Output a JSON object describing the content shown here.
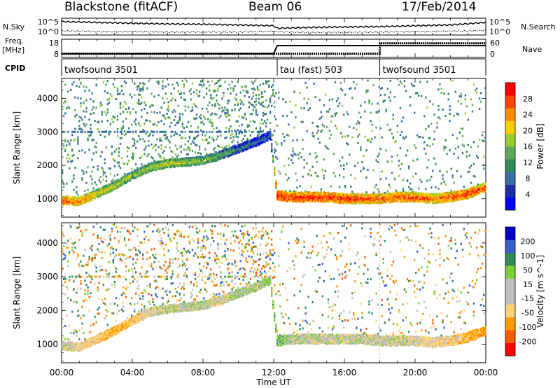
{
  "header": {
    "title": "Blackstone (fitACF)",
    "beam": "Beam 06",
    "date": "17/Feb/2014"
  },
  "side_labels": {
    "nsky": "N.Sky",
    "nsearch": "N.Search",
    "freq": "Freq.",
    "freq_unit": "[MHz]",
    "nave": "Nave",
    "cpid": "CPID"
  },
  "colors": {
    "power_scale": [
      "#0000ff",
      "#1e2ea8",
      "#3a6ea5",
      "#2e8b57",
      "#5faa5a",
      "#9acd32",
      "#ffcc00",
      "#ff8c00",
      "#ff4500",
      "#ff0000"
    ],
    "velocity_scale": [
      "#ff0000",
      "#ff5a00",
      "#ff9a00",
      "#ffd27a",
      "#c0c0c0",
      "#c0c0c0",
      "#7ccd3a",
      "#2e8b57",
      "#3a5fcd",
      "#0000cd"
    ],
    "trace": "#000000"
  },
  "chart_data": [
    {
      "type": "line",
      "title": "N.Sky / N.Search",
      "y_ticks": [
        "10^5",
        "10^0"
      ],
      "y_ticks_right": [
        "10^5",
        "10^0"
      ],
      "x_range_hours": [
        0,
        24
      ],
      "series": [
        {
          "name": "N.Sky",
          "style": "solid",
          "x": [
            0,
            2,
            4,
            6,
            8,
            10,
            12,
            12.2,
            14,
            16,
            18,
            20,
            22,
            24
          ],
          "y": [
            0.8,
            0.75,
            0.7,
            0.66,
            0.64,
            0.6,
            0.55,
            0.4,
            0.45,
            0.48,
            0.5,
            0.55,
            0.6,
            0.75
          ]
        },
        {
          "name": "N.Search",
          "style": "dotted",
          "x": [
            0,
            2,
            4,
            6,
            8,
            10,
            12,
            12.2,
            14,
            16,
            18,
            20,
            22,
            24
          ],
          "y": [
            0.25,
            0.2,
            0.2,
            0.18,
            0.18,
            0.18,
            0.22,
            0.2,
            0.15,
            0.15,
            0.18,
            0.2,
            0.22,
            0.28
          ]
        }
      ]
    },
    {
      "type": "line",
      "title": "Freq. / Nave",
      "y_ticks_left": [
        "18",
        "8"
      ],
      "y_ticks_right": [
        "60",
        "0"
      ],
      "x_range_hours": [
        0,
        24
      ],
      "series": [
        {
          "name": "Freq.",
          "style": "solid",
          "x": [
            0,
            12,
            12.2,
            18,
            18.01,
            24
          ],
          "y": [
            0.2,
            0.2,
            0.65,
            0.65,
            0.65,
            0.65
          ]
        },
        {
          "name": "Nave",
          "style": "dotted",
          "x": [
            0,
            12,
            12.2,
            18,
            18.01,
            24
          ],
          "y": [
            0.2,
            0.2,
            0.2,
            0.2,
            0.78,
            0.78
          ]
        }
      ]
    },
    {
      "type": "table",
      "title": "CPID",
      "segments": [
        {
          "start_hours": 0,
          "end_hours": 12.2,
          "label": "twofsound 3501"
        },
        {
          "start_hours": 12.2,
          "end_hours": 18,
          "label": "tau (fast) 503"
        },
        {
          "start_hours": 18,
          "end_hours": 24,
          "label": "twofsound 3501"
        }
      ]
    },
    {
      "type": "heatmap",
      "title": "",
      "ylabel": "Slant Range [km]",
      "y_ticks": [
        1000,
        2000,
        3000,
        4000
      ],
      "y_range_km": [
        450,
        4600
      ],
      "colorbar": {
        "label": "Power [dB]",
        "ticks": [
          "28",
          "24",
          "20",
          "16",
          "12",
          "8",
          "4"
        ],
        "range": [
          0,
          30
        ]
      },
      "band_x_hours": [
        0,
        1,
        2,
        3,
        4,
        5,
        6,
        7,
        8,
        9,
        10,
        11,
        11.8,
        12.2,
        13,
        14,
        15,
        16,
        17,
        18,
        19,
        20,
        21,
        22,
        23,
        24
      ],
      "band_center_km": [
        950,
        920,
        1150,
        1400,
        1700,
        1950,
        2050,
        2100,
        2150,
        2300,
        2500,
        2700,
        2900,
        1100,
        1050,
        1050,
        1050,
        1000,
        1000,
        1000,
        1050,
        1050,
        1000,
        1050,
        1150,
        1350
      ],
      "band_power_db": [
        26,
        24,
        20,
        18,
        16,
        17,
        18,
        17,
        16,
        14,
        10,
        8,
        8,
        28,
        27,
        27,
        27,
        27,
        26,
        25,
        25,
        25,
        24,
        25,
        26,
        26
      ]
    },
    {
      "type": "heatmap",
      "title": "",
      "ylabel": "Slant Range [km]",
      "y_ticks": [
        1000,
        2000,
        3000,
        4000
      ],
      "y_range_km": [
        450,
        4600
      ],
      "colorbar": {
        "label": "Velocity [m s^-1]",
        "ticks": [
          "200",
          "100",
          "50",
          "15",
          "-15",
          "-50",
          "-100",
          "-200"
        ],
        "range": [
          -250,
          250
        ]
      },
      "band_x_hours": [
        0,
        1,
        2,
        3,
        4,
        5,
        6,
        7,
        8,
        9,
        10,
        11,
        11.8,
        12.2,
        13,
        14,
        15,
        16,
        17,
        18,
        19,
        20,
        21,
        22,
        23,
        24
      ],
      "band_center_km": [
        950,
        920,
        1150,
        1400,
        1700,
        1950,
        2050,
        2100,
        2150,
        2300,
        2500,
        2700,
        2900,
        1100,
        1150,
        1150,
        1150,
        1150,
        1150,
        1100,
        1100,
        1100,
        1050,
        1100,
        1200,
        1400
      ],
      "band_velocity": [
        0,
        -20,
        -30,
        -60,
        -40,
        -10,
        0,
        5,
        0,
        -10,
        20,
        0,
        30,
        40,
        0,
        0,
        0,
        0,
        0,
        0,
        -5,
        -10,
        -20,
        -30,
        -50,
        -80
      ]
    }
  ],
  "xaxis": {
    "label": "Time UT",
    "ticks": [
      "00:00",
      "04:00",
      "08:00",
      "12:00",
      "16:00",
      "20:00",
      "00:00"
    ]
  }
}
